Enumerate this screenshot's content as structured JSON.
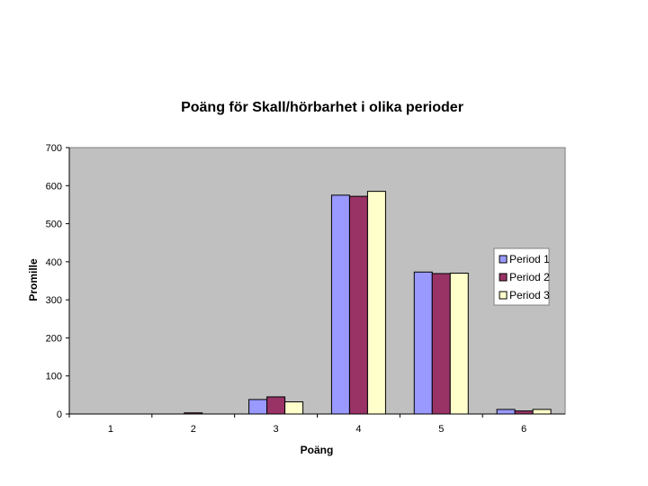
{
  "chart_data": {
    "type": "bar",
    "title": "Poäng för Skall/hörbarhet i olika perioder",
    "xlabel": "Poäng",
    "ylabel": "Promille",
    "categories": [
      "1",
      "2",
      "3",
      "4",
      "5",
      "6"
    ],
    "ylim": [
      0,
      700
    ],
    "yticks": [
      0,
      100,
      200,
      300,
      400,
      500,
      600,
      700
    ],
    "grid": false,
    "legend_position": "right",
    "plot_background": "#c0c0c0",
    "series": [
      {
        "name": "Period 1",
        "color": "#9999ff",
        "values": [
          0,
          0,
          38,
          575,
          373,
          12
        ]
      },
      {
        "name": "Period 2",
        "color": "#993366",
        "values": [
          0,
          3,
          45,
          572,
          369,
          8
        ]
      },
      {
        "name": "Period 3",
        "color": "#ffffcc",
        "values": [
          0,
          0,
          32,
          585,
          370,
          12
        ]
      }
    ]
  }
}
